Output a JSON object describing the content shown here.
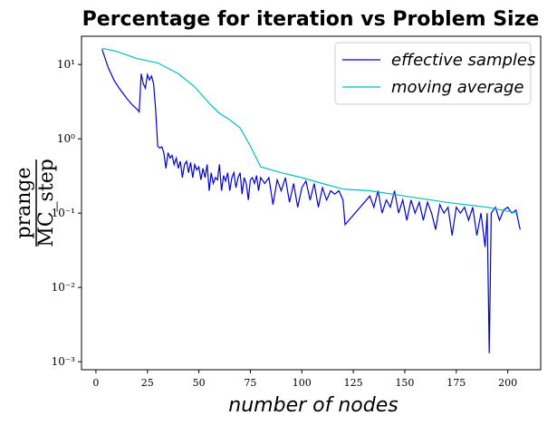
{
  "chart_data": {
    "type": "line",
    "title": "Percentage for iteration vs Problem Size",
    "xlabel": "number of nodes",
    "ylabel_numerator": "prange",
    "ylabel_denominator": "MC_step",
    "log_y": true,
    "legend": "upper right",
    "xlim": [
      -7,
      216
    ],
    "ylim": [
      0.00078,
      24
    ],
    "xticks": [
      0,
      25,
      50,
      75,
      100,
      125,
      150,
      175,
      200
    ],
    "yticks": [
      {
        "value": 10,
        "label": "10¹"
      },
      {
        "value": 1,
        "label": "10⁰"
      },
      {
        "value": 0.1,
        "label": "10⁻¹"
      },
      {
        "value": 0.01,
        "label": "10⁻²"
      },
      {
        "value": 0.001,
        "label": "10⁻³"
      }
    ],
    "series": [
      {
        "name": "effective samples",
        "color": "#0000dd",
        "x": [
          3,
          6,
          9,
          12,
          15,
          18,
          20,
          21,
          22,
          23,
          24,
          25,
          26,
          27,
          28,
          29,
          30,
          31,
          32,
          33,
          34,
          35,
          36,
          37,
          38,
          39,
          40,
          41,
          42,
          43,
          44,
          45,
          46,
          47,
          48,
          49,
          50,
          51,
          52,
          53,
          54,
          55,
          56,
          57,
          58,
          59,
          60,
          61,
          62,
          63,
          64,
          65,
          66,
          67,
          68,
          69,
          70,
          71,
          72,
          73,
          74,
          75,
          76,
          77,
          78,
          79,
          80,
          82,
          84,
          86,
          88,
          90,
          92,
          94,
          96,
          98,
          100,
          102,
          104,
          106,
          108,
          110,
          112,
          114,
          116,
          118,
          120,
          121,
          133,
          135,
          137,
          139,
          141,
          143,
          145,
          147,
          149,
          151,
          153,
          155,
          157,
          159,
          161,
          163,
          165,
          167,
          169,
          171,
          173,
          175,
          177,
          179,
          181,
          183,
          185,
          187,
          189,
          190,
          191,
          192,
          194,
          196,
          198,
          200,
          202,
          204,
          206
        ],
        "values": [
          16,
          9,
          6,
          4.5,
          3.5,
          2.8,
          2.5,
          2.3,
          7.5,
          5.5,
          4.8,
          7.3,
          6.2,
          7,
          5.5,
          2.5,
          0.8,
          0.75,
          0.78,
          0.65,
          0.4,
          0.65,
          0.55,
          0.6,
          0.45,
          0.55,
          0.4,
          0.5,
          0.3,
          0.45,
          0.5,
          0.35,
          0.48,
          0.3,
          0.45,
          0.38,
          0.42,
          0.28,
          0.4,
          0.3,
          0.45,
          0.2,
          0.35,
          0.25,
          0.3,
          0.28,
          0.45,
          0.2,
          0.32,
          0.27,
          0.35,
          0.2,
          0.3,
          0.35,
          0.22,
          0.3,
          0.35,
          0.18,
          0.3,
          0.25,
          0.15,
          0.28,
          0.3,
          0.25,
          0.32,
          0.2,
          0.3,
          0.25,
          0.3,
          0.13,
          0.28,
          0.2,
          0.3,
          0.14,
          0.25,
          0.12,
          0.22,
          0.27,
          0.15,
          0.25,
          0.12,
          0.22,
          0.15,
          0.2,
          0.18,
          0.2,
          0.15,
          0.07,
          0.17,
          0.12,
          0.2,
          0.1,
          0.15,
          0.12,
          0.2,
          0.1,
          0.15,
          0.08,
          0.15,
          0.1,
          0.14,
          0.08,
          0.14,
          0.1,
          0.06,
          0.13,
          0.1,
          0.12,
          0.05,
          0.12,
          0.1,
          0.12,
          0.08,
          0.12,
          0.05,
          0.1,
          0.035,
          0.1,
          0.0013,
          0.1,
          0.12,
          0.08,
          0.11,
          0.12,
          0.1,
          0.11,
          0.06
        ]
      },
      {
        "name": "moving average",
        "color": "#00bfbf",
        "x": [
          3,
          10,
          20,
          30,
          40,
          48,
          55,
          60,
          65,
          70,
          75,
          80,
          90,
          100,
          110,
          120,
          133,
          150,
          170,
          190,
          205
        ],
        "values": [
          16.5,
          15,
          12,
          10.5,
          7.5,
          5,
          3,
          2.2,
          1.8,
          1.4,
          0.8,
          0.42,
          0.35,
          0.3,
          0.25,
          0.21,
          0.2,
          0.17,
          0.14,
          0.12,
          0.1
        ]
      }
    ]
  }
}
